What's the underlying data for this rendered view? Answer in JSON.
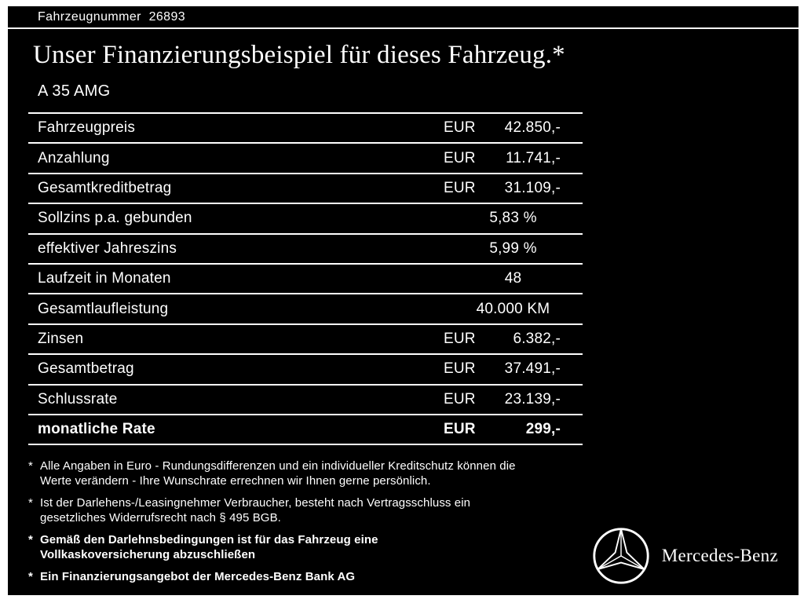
{
  "header": {
    "vehicle_number": "Fahrzeugnummer  26893",
    "title": "Unser Finanzierungsbeispiel für dieses Fahrzeug.*",
    "model": "A 35 AMG"
  },
  "table": {
    "rows": [
      {
        "label": "Fahrzeugpreis",
        "currency": "EUR",
        "amount": "42.850,-",
        "align": "right",
        "bold": false
      },
      {
        "label": "Anzahlung",
        "currency": "EUR",
        "amount": "11.741,-",
        "align": "right",
        "bold": false
      },
      {
        "label": "Gesamtkreditbetrag",
        "currency": "EUR",
        "amount": "31.109,-",
        "align": "right",
        "bold": false
      },
      {
        "label": "Sollzins p.a. gebunden",
        "currency": "",
        "amount": "5,83 %",
        "align": "center",
        "bold": false
      },
      {
        "label": "effektiver Jahreszins",
        "currency": "",
        "amount": "5,99 %",
        "align": "center",
        "bold": false
      },
      {
        "label": "Laufzeit in Monaten",
        "currency": "",
        "amount": "48",
        "align": "center",
        "bold": false
      },
      {
        "label": "Gesamtlaufleistung",
        "currency": "",
        "amount": "40.000 KM",
        "align": "center",
        "bold": false
      },
      {
        "label": "Zinsen",
        "currency": "EUR",
        "amount": "6.382,-",
        "align": "right",
        "bold": false
      },
      {
        "label": "Gesamtbetrag",
        "currency": "EUR",
        "amount": "37.491,-",
        "align": "right",
        "bold": false
      },
      {
        "label": "Schlussrate",
        "currency": "EUR",
        "amount": "23.139,-",
        "align": "right",
        "bold": false
      },
      {
        "label": "monatliche Rate",
        "currency": "EUR",
        "amount": "299,-",
        "align": "right",
        "bold": true
      }
    ]
  },
  "footnotes": [
    {
      "marker": "*",
      "text": "Alle Angaben in Euro - Rundungsdifferenzen und ein individueller Kreditschutz können die\nWerte verändern - Ihre Wunschrate errechnen wir Ihnen gerne persönlich.",
      "bold": false
    },
    {
      "marker": "*",
      "text": "Ist der Darlehens-/Leasingnehmer Verbraucher, besteht nach Vertragsschluss ein\ngesetzliches Widerrufsrecht nach § 495 BGB.",
      "bold": false
    },
    {
      "marker": "*",
      "text": "Gemäß den Darlehnsbedingungen ist für das Fahrzeug eine\nVollkaskoversicherung abzuschließen",
      "bold": true
    },
    {
      "marker": "*",
      "text": "Ein Finanzierungsangebot der Mercedes-Benz Bank AG",
      "bold": true
    }
  ],
  "footer": {
    "brand": "Mercedes-Benz"
  },
  "colors": {
    "background": "#000000",
    "text": "#ffffff",
    "frame": "#ffffff"
  }
}
